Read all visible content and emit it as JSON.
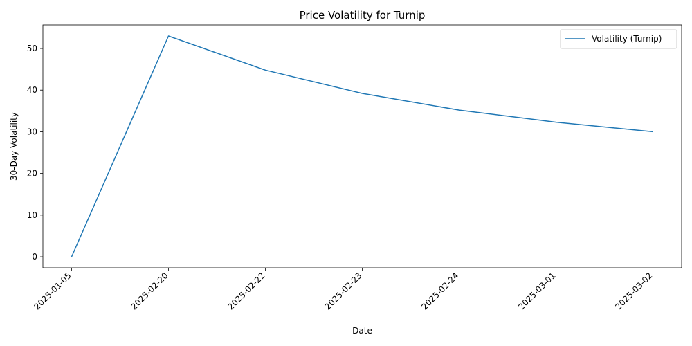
{
  "chart_data": {
    "type": "line",
    "title": "Price Volatility for Turnip",
    "xlabel": "Date",
    "ylabel": "30-Day Volatility",
    "categories": [
      "2025-01-05",
      "2025-02-20",
      "2025-02-22",
      "2025-02-23",
      "2025-02-24",
      "2025-03-01",
      "2025-03-02"
    ],
    "series": [
      {
        "name": "Volatility (Turnip)",
        "values": [
          0,
          53.0,
          44.8,
          39.2,
          35.2,
          32.3,
          30.0
        ],
        "color": "#1f77b4"
      }
    ],
    "ylim": [
      -2.65,
      55.65
    ],
    "yticks": [
      0,
      10,
      20,
      30,
      40,
      50
    ],
    "grid": false,
    "legend": "top-right"
  }
}
